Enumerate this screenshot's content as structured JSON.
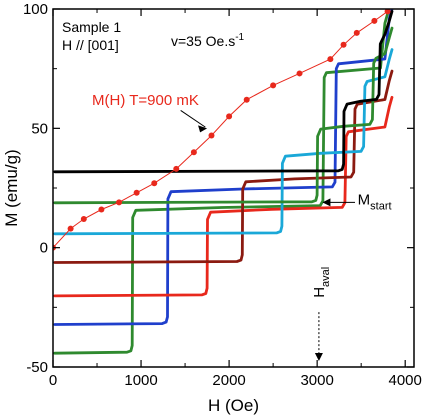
{
  "chart_data": {
    "type": "scatter",
    "xlabel": "H (Oe)",
    "ylabel": "M  (emu/g)",
    "xlim": [
      0,
      4100
    ],
    "ylim": [
      -50,
      100
    ],
    "x_ticks": [
      0,
      1000,
      2000,
      3000,
      4000
    ],
    "y_ticks": [
      -50,
      0,
      50,
      100
    ],
    "grid": false,
    "annotations": {
      "sample": "Sample 1",
      "field_dir": "H // [001]",
      "rate": "v=35 Oe.s",
      "rate_exp": "-1",
      "mh_label": "M(H) T=900 mK",
      "mstart": "M",
      "mstart_sub": "start",
      "haval": "H",
      "haval_sub": "aval"
    },
    "mh_curve": {
      "name": "M(H) T=900 mK",
      "color": "#e8281c",
      "x": [
        0,
        200,
        350,
        550,
        750,
        950,
        1150,
        1400,
        1600,
        1800,
        2000,
        2200,
        2500,
        2800,
        3150,
        3300,
        3450,
        3650,
        3800
      ],
      "y": [
        0,
        8,
        12,
        16,
        19,
        23,
        27,
        33,
        40,
        47,
        55,
        62,
        68,
        73,
        79,
        85,
        90,
        95,
        99
      ]
    },
    "series": [
      {
        "color": "#2f8a2f",
        "m_start": -44,
        "h_aval": 900,
        "x_end": 3800,
        "y_end": 98
      },
      {
        "color": "#1f3fcc",
        "m_start": -32,
        "h_aval": 1300,
        "x_end": 3850,
        "y_end": 100
      },
      {
        "color": "#e8281c",
        "m_start": -20,
        "h_aval": 1750,
        "x_end": 3850,
        "y_end": 63
      },
      {
        "color": "#8b1a10",
        "m_start": -6,
        "h_aval": 2150,
        "x_end": 3850,
        "y_end": 74
      },
      {
        "color": "#1aa8d8",
        "m_start": 6,
        "h_aval": 2600,
        "x_end": 3850,
        "y_end": 83
      },
      {
        "color": "#2f8a2f",
        "m_start": 19,
        "h_aval": 3000,
        "x_end": 3850,
        "y_end": 92
      },
      {
        "color": "#000000",
        "m_start": 32,
        "h_aval": 3300,
        "x_end": 3850,
        "y_end": 99
      }
    ]
  }
}
